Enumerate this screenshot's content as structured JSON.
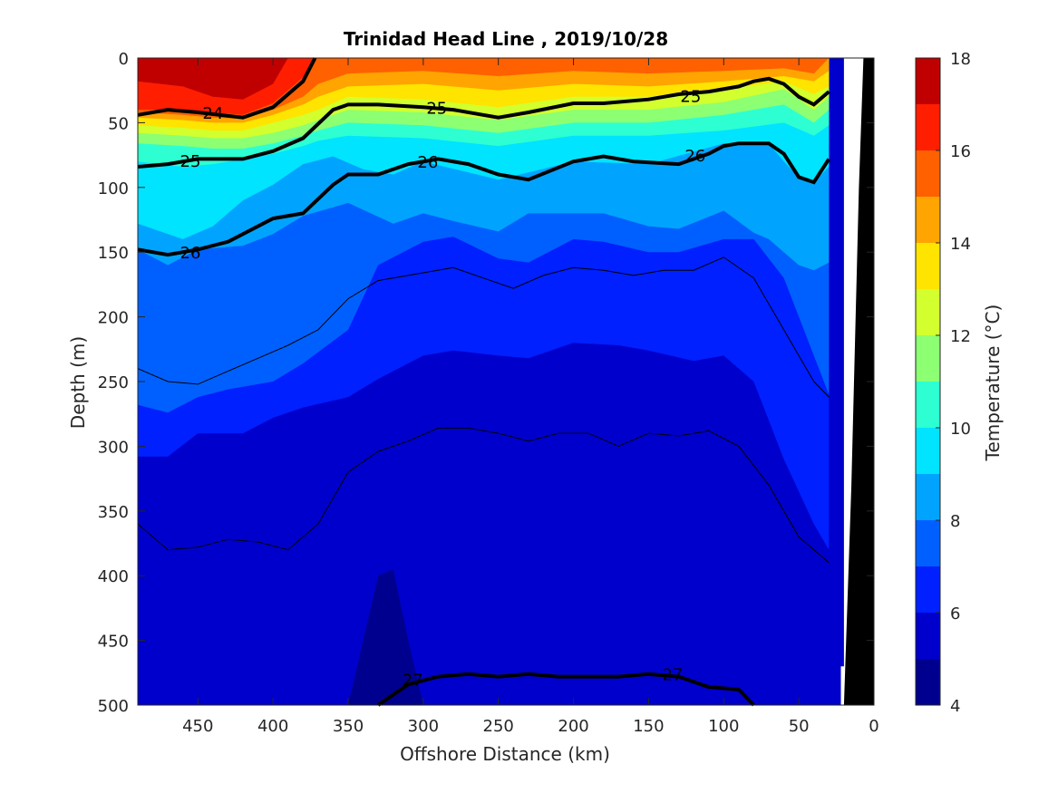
{
  "chart_data": {
    "type": "contour",
    "title": "Trinidad Head Line , 2019/10/28",
    "xlabel": "Offshore Distance (km)",
    "ylabel": "Depth (m)",
    "xlim": [
      490,
      0
    ],
    "ylim": [
      500,
      0
    ],
    "x_reversed": true,
    "y_reversed": true,
    "xticks": [
      450,
      400,
      350,
      300,
      250,
      200,
      150,
      100,
      50,
      0
    ],
    "yticks": [
      0,
      50,
      100,
      150,
      200,
      250,
      300,
      350,
      400,
      450,
      500
    ],
    "colorbar": {
      "label": "Temperature (°C)",
      "ticks": [
        4,
        6,
        8,
        10,
        12,
        14,
        16,
        18
      ],
      "levels": [
        4,
        5,
        6,
        7,
        8,
        9,
        10,
        11,
        12,
        13,
        14,
        15,
        16,
        17,
        18
      ],
      "colors": [
        "#00008f",
        "#0000cc",
        "#0020ff",
        "#0060ff",
        "#00a4ff",
        "#00e4ff",
        "#2dffd2",
        "#8cff73",
        "#d2ff2d",
        "#ffe400",
        "#ffa400",
        "#ff6000",
        "#ff1e00",
        "#c00000"
      ]
    },
    "temperature_layers": [
      {
        "level": 17,
        "x": [
          490,
          460,
          440,
          420,
          400,
          390
        ],
        "depth": [
          18,
          22,
          30,
          32,
          20,
          0
        ]
      },
      {
        "level": 16,
        "x": [
          490,
          460,
          440,
          420,
          400,
          380,
          372
        ],
        "depth": [
          40,
          40,
          42,
          44,
          35,
          15,
          0
        ]
      },
      {
        "level": 15,
        "x": [
          490,
          460,
          440,
          420,
          400,
          380,
          370,
          350,
          300,
          250,
          200,
          150,
          100,
          60,
          40,
          30
        ],
        "depth": [
          42,
          44,
          46,
          47,
          40,
          30,
          20,
          12,
          10,
          14,
          10,
          12,
          10,
          8,
          12,
          0
        ]
      },
      {
        "level": 14,
        "x": [
          490,
          460,
          440,
          420,
          400,
          380,
          370,
          350,
          300,
          250,
          200,
          150,
          100,
          60,
          40,
          30
        ],
        "depth": [
          46,
          48,
          50,
          50,
          44,
          36,
          30,
          22,
          20,
          25,
          20,
          22,
          18,
          14,
          18,
          10
        ]
      },
      {
        "level": 13,
        "x": [
          490,
          460,
          440,
          420,
          400,
          380,
          370,
          350,
          300,
          250,
          200,
          150,
          100,
          60,
          40,
          30
        ],
        "depth": [
          52,
          54,
          56,
          56,
          50,
          44,
          40,
          30,
          32,
          38,
          30,
          30,
          24,
          18,
          28,
          22
        ]
      },
      {
        "level": 12,
        "x": [
          490,
          460,
          440,
          420,
          400,
          380,
          370,
          350,
          300,
          250,
          200,
          150,
          100,
          60,
          40,
          30
        ],
        "depth": [
          58,
          60,
          62,
          62,
          58,
          52,
          48,
          40,
          42,
          48,
          40,
          40,
          34,
          24,
          40,
          30
        ]
      },
      {
        "level": 11,
        "x": [
          490,
          460,
          440,
          420,
          400,
          380,
          370,
          350,
          300,
          250,
          200,
          150,
          100,
          60,
          40,
          30
        ],
        "depth": [
          66,
          68,
          70,
          70,
          66,
          60,
          56,
          50,
          52,
          58,
          50,
          50,
          44,
          36,
          50,
          40
        ]
      },
      {
        "level": 10,
        "x": [
          490,
          460,
          440,
          420,
          400,
          380,
          370,
          350,
          300,
          250,
          200,
          150,
          100,
          60,
          40,
          30
        ],
        "depth": [
          80,
          84,
          82,
          78,
          74,
          68,
          64,
          60,
          62,
          68,
          60,
          60,
          56,
          50,
          60,
          52
        ]
      },
      {
        "level": 9,
        "x": [
          490,
          460,
          440,
          420,
          400,
          380,
          360,
          340,
          320,
          300,
          250,
          200,
          150,
          100,
          70,
          60,
          50,
          40,
          30
        ],
        "depth": [
          128,
          140,
          130,
          110,
          98,
          82,
          76,
          86,
          90,
          80,
          94,
          80,
          82,
          66,
          66,
          80,
          92,
          96,
          84
        ]
      },
      {
        "level": 8,
        "x": [
          490,
          470,
          450,
          420,
          400,
          380,
          350,
          320,
          300,
          280,
          250,
          230,
          200,
          180,
          150,
          130,
          100,
          80,
          70,
          60,
          50,
          40,
          30
        ],
        "depth": [
          148,
          160,
          148,
          145,
          136,
          122,
          112,
          128,
          120,
          126,
          134,
          120,
          120,
          120,
          130,
          132,
          118,
          135,
          140,
          150,
          160,
          164,
          158
        ]
      },
      {
        "level": 7,
        "x": [
          490,
          470,
          450,
          430,
          400,
          380,
          350,
          330,
          300,
          280,
          250,
          230,
          200,
          180,
          150,
          130,
          100,
          80,
          60,
          40,
          30
        ],
        "depth": [
          268,
          274,
          262,
          256,
          250,
          236,
          210,
          160,
          142,
          138,
          155,
          158,
          140,
          142,
          150,
          150,
          140,
          140,
          170,
          230,
          260
        ]
      },
      {
        "level": 6,
        "x": [
          490,
          470,
          450,
          420,
          400,
          380,
          350,
          330,
          300,
          280,
          250,
          230,
          200,
          170,
          150,
          120,
          100,
          80,
          60,
          40,
          30
        ],
        "depth": [
          308,
          308,
          290,
          290,
          278,
          270,
          262,
          248,
          230,
          226,
          230,
          232,
          220,
          222,
          226,
          234,
          230,
          250,
          310,
          360,
          380
        ]
      },
      {
        "level": 5,
        "x": [
          490,
          470,
          450,
          420,
          400,
          380,
          360,
          350,
          330,
          300,
          280,
          250,
          230,
          200,
          180,
          150,
          130,
          100,
          80,
          60,
          40,
          30
        ],
        "depth": [
          396,
          390,
          392,
          402,
          410,
          366,
          356,
          340,
          300,
          292,
          300,
          322,
          320,
          312,
          318,
          314,
          324,
          336,
          360,
          380,
          410,
          430
        ]
      },
      {
        "level": 4,
        "x": [
          350,
          340,
          330,
          320,
          310,
          300
        ],
        "depth": [
          500,
          450,
          400,
          395,
          450,
          500
        ]
      }
    ],
    "shelf_mask": {
      "x": [
        30,
        22,
        22,
        20,
        20,
        7,
        0
      ],
      "depth": [
        500,
        500,
        470,
        470,
        0,
        0,
        0
      ],
      "seafloor": {
        "x": [
          20,
          15,
          10,
          7,
          0,
          0
        ],
        "depth": [
          500,
          330,
          100,
          0,
          0,
          500
        ]
      }
    },
    "density_contours": [
      {
        "label": "24",
        "x": [
          490,
          470,
          450,
          420,
          400,
          380,
          372
        ],
        "depth": [
          44,
          40,
          42,
          46,
          38,
          18,
          0
        ],
        "labeled": true
      },
      {
        "label": "25",
        "x": [
          490,
          470,
          450,
          420,
          400,
          380,
          360,
          350,
          330,
          300,
          280,
          250,
          230,
          200,
          180,
          150,
          130,
          110,
          90,
          80,
          70,
          60,
          50,
          40,
          30
        ],
        "depth": [
          84,
          82,
          78,
          78,
          72,
          62,
          40,
          36,
          36,
          38,
          40,
          46,
          42,
          35,
          35,
          32,
          28,
          26,
          22,
          18,
          16,
          20,
          30,
          36,
          26
        ],
        "labeled": true
      },
      {
        "label": "26",
        "x": [
          490,
          470,
          450,
          430,
          400,
          380,
          360,
          350,
          330,
          310,
          290,
          270,
          250,
          230,
          200,
          180,
          160,
          130,
          110,
          100,
          90,
          70,
          60,
          50,
          40,
          30
        ],
        "depth": [
          148,
          152,
          148,
          142,
          124,
          120,
          98,
          90,
          90,
          82,
          78,
          82,
          90,
          94,
          80,
          76,
          80,
          82,
          74,
          68,
          66,
          66,
          74,
          92,
          96,
          78
        ],
        "labeled": true
      },
      {
        "label": "27",
        "x": [
          330,
          310,
          290,
          270,
          250,
          230,
          210,
          190,
          170,
          150,
          130,
          110,
          90,
          80
        ],
        "depth": [
          500,
          484,
          478,
          476,
          478,
          476,
          478,
          478,
          478,
          476,
          478,
          486,
          488,
          500
        ],
        "labeled": true
      },
      {
        "label": "",
        "x": [
          490,
          470,
          450,
          430,
          410,
          390,
          370,
          350,
          330,
          300,
          280,
          260,
          240,
          220,
          200,
          180,
          160,
          140,
          120,
          100,
          80,
          60,
          50,
          40,
          30
        ],
        "depth": [
          240,
          250,
          252,
          242,
          232,
          222,
          210,
          186,
          172,
          166,
          162,
          170,
          178,
          168,
          162,
          164,
          168,
          164,
          164,
          154,
          170,
          210,
          230,
          250,
          262
        ],
        "labeled": false
      },
      {
        "label": "",
        "x": [
          490,
          470,
          450,
          430,
          410,
          390,
          370,
          350,
          330,
          310,
          290,
          270,
          250,
          230,
          210,
          190,
          170,
          150,
          130,
          110,
          90,
          70,
          50,
          30
        ],
        "depth": [
          360,
          380,
          378,
          372,
          374,
          380,
          360,
          320,
          304,
          296,
          286,
          286,
          290,
          296,
          290,
          290,
          300,
          290,
          292,
          288,
          300,
          330,
          370,
          390
        ],
        "labeled": false
      }
    ],
    "contour_label_positions": [
      {
        "text": "24",
        "x": 440,
        "depth": 42
      },
      {
        "text": "25",
        "x": 455,
        "depth": 79
      },
      {
        "text": "26",
        "x": 455,
        "depth": 150
      },
      {
        "text": "25",
        "x": 291,
        "depth": 38
      },
      {
        "text": "26",
        "x": 297,
        "depth": 80
      },
      {
        "text": "25",
        "x": 122,
        "depth": 29
      },
      {
        "text": "26",
        "x": 119,
        "depth": 75
      },
      {
        "text": "27",
        "x": 307,
        "depth": 480
      },
      {
        "text": "27",
        "x": 134,
        "depth": 476
      }
    ]
  }
}
